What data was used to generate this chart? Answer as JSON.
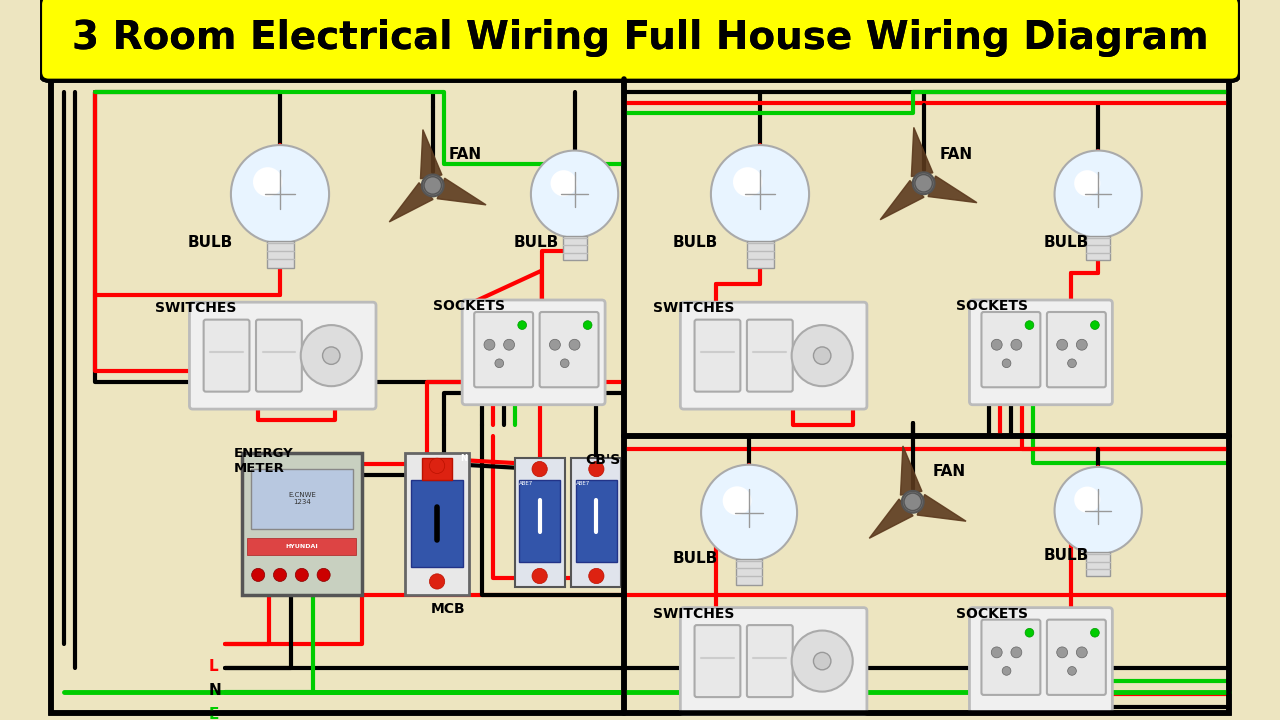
{
  "title": "3 Room Electrical Wiring Full House Wiring Diagram",
  "bg_color": "#EDE5C0",
  "title_bg": "#FFFF00",
  "title_color": "#000000",
  "border_color": "#000000",
  "wire_red": "#FF0000",
  "wire_black": "#000000",
  "wire_green": "#00CC00",
  "lne_labels": [
    "L",
    "N",
    "E"
  ],
  "lne_colors": [
    "#FF0000",
    "#000000",
    "#00CC00"
  ]
}
